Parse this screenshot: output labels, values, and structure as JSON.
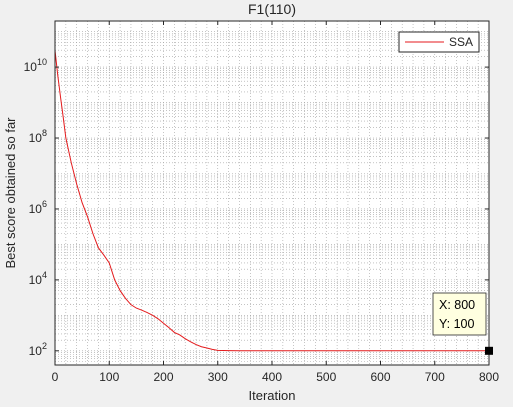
{
  "chart_data": {
    "type": "line",
    "title": "F1(110)",
    "xlabel": "Iteration",
    "ylabel": "Best score obtained so far",
    "xlim": [
      0,
      800
    ],
    "ylim_log10": [
      1.6,
      11.3
    ],
    "yscale": "log",
    "grid": "major and minor, dotted",
    "legend_position": "top-right",
    "x_ticks": [
      0,
      100,
      200,
      300,
      400,
      500,
      600,
      700,
      800
    ],
    "y_ticks": [
      {
        "base": "10",
        "exp": "2",
        "value": 100
      },
      {
        "base": "10",
        "exp": "4",
        "value": 10000
      },
      {
        "base": "10",
        "exp": "6",
        "value": 1000000
      },
      {
        "base": "10",
        "exp": "8",
        "value": 100000000
      },
      {
        "base": "10",
        "exp": "10",
        "value": 10000000000
      }
    ],
    "series": [
      {
        "name": "SSA",
        "color": "#e41a1c",
        "x": [
          0,
          5,
          10,
          15,
          20,
          30,
          40,
          50,
          60,
          70,
          80,
          90,
          100,
          110,
          120,
          130,
          140,
          150,
          160,
          170,
          180,
          190,
          200,
          210,
          220,
          230,
          240,
          250,
          260,
          270,
          280,
          290,
          300,
          320,
          340,
          360,
          380,
          400,
          420,
          440,
          460,
          480,
          500,
          600,
          700,
          800
        ],
        "y": [
          30000000000.0,
          6000000000.0,
          1500000000.0,
          400000000.0,
          100000000.0,
          20000000.0,
          5000000.0,
          1500000.0,
          600000.0,
          200000.0,
          80000.0,
          50000.0,
          30000.0,
          10000.0,
          5000.0,
          3000.0,
          2000.0,
          1600.0,
          1400.0,
          1200.0,
          1000.0,
          800,
          600,
          450,
          330,
          280,
          220,
          180,
          150,
          130,
          120,
          110,
          103,
          101,
          100,
          100,
          100,
          100,
          100,
          100,
          100,
          100,
          100,
          100,
          100,
          100
        ]
      }
    ],
    "datatip": {
      "x_label": "X: 800",
      "y_label": "Y: 100",
      "x": 800,
      "y": 100
    }
  }
}
